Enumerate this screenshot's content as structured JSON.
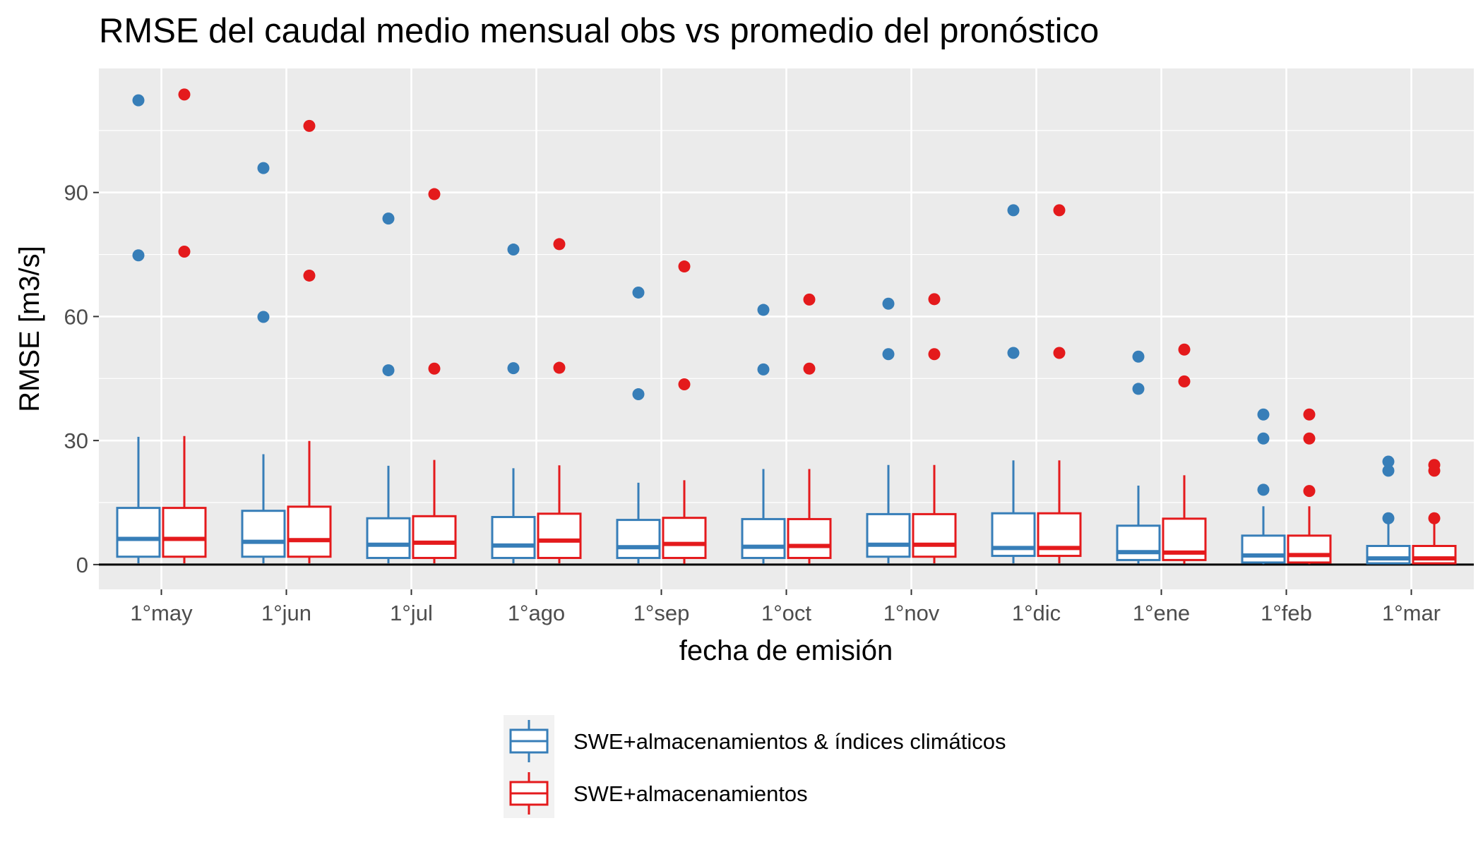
{
  "chart_data": {
    "type": "boxplot",
    "title": "RMSE del caudal medio mensual obs vs promedio del pronóstico",
    "xlabel": "fecha de emisión",
    "ylabel": "RMSE [m3/s]",
    "ylim": [
      -6,
      120
    ],
    "y_ticks": [
      0,
      30,
      60,
      90
    ],
    "grid": true,
    "zero_line": true,
    "legend_position": "bottom",
    "categories": [
      "1°may",
      "1°jun",
      "1°jul",
      "1°ago",
      "1°sep",
      "1°oct",
      "1°nov",
      "1°dic",
      "1°ene",
      "1°feb",
      "1°mar"
    ],
    "series": [
      {
        "name": "SWE+almacenamientos & índices climáticos",
        "color": "#377eb8",
        "boxes": [
          {
            "lower": 0.3,
            "q1": 1.9,
            "median": 6.2,
            "q3": 13.7,
            "upper": 30.9,
            "outliers": [
              74.8,
              112.3
            ]
          },
          {
            "lower": 0.3,
            "q1": 1.9,
            "median": 5.5,
            "q3": 13.0,
            "upper": 26.7,
            "outliers": [
              59.9,
              95.9
            ]
          },
          {
            "lower": 0.3,
            "q1": 1.6,
            "median": 4.8,
            "q3": 11.2,
            "upper": 23.9,
            "outliers": [
              47.0,
              83.7
            ]
          },
          {
            "lower": 0.3,
            "q1": 1.6,
            "median": 4.6,
            "q3": 11.5,
            "upper": 23.3,
            "outliers": [
              47.5,
              76.2
            ]
          },
          {
            "lower": 0.2,
            "q1": 1.6,
            "median": 4.2,
            "q3": 10.8,
            "upper": 19.8,
            "outliers": [
              41.2,
              65.8
            ]
          },
          {
            "lower": 0.2,
            "q1": 1.6,
            "median": 4.3,
            "q3": 11.0,
            "upper": 23.1,
            "outliers": [
              47.2,
              61.6
            ]
          },
          {
            "lower": 0.3,
            "q1": 1.9,
            "median": 4.8,
            "q3": 12.2,
            "upper": 24.1,
            "outliers": [
              50.9,
              63.1
            ]
          },
          {
            "lower": 0.3,
            "q1": 2.1,
            "median": 4.0,
            "q3": 12.4,
            "upper": 25.2,
            "outliers": [
              51.2,
              85.7
            ]
          },
          {
            "lower": 0.2,
            "q1": 1.1,
            "median": 3.0,
            "q3": 9.4,
            "upper": 19.1,
            "outliers": [
              42.5,
              50.3
            ]
          },
          {
            "lower": 0.1,
            "q1": 0.5,
            "median": 2.2,
            "q3": 7.0,
            "upper": 14.1,
            "outliers": [
              18.1,
              30.5,
              36.3
            ]
          },
          {
            "lower": 0.1,
            "q1": 0.3,
            "median": 1.5,
            "q3": 4.5,
            "upper": 9.8,
            "outliers": [
              11.2,
              22.7,
              24.9
            ]
          }
        ]
      },
      {
        "name": "SWE+almacenamientos",
        "color": "#e41a1c",
        "boxes": [
          {
            "lower": 0.3,
            "q1": 1.9,
            "median": 6.2,
            "q3": 13.7,
            "upper": 31.1,
            "outliers": [
              75.7,
              113.7
            ]
          },
          {
            "lower": 0.3,
            "q1": 1.9,
            "median": 5.9,
            "q3": 14.0,
            "upper": 29.9,
            "outliers": [
              69.9,
              106.1
            ]
          },
          {
            "lower": 0.3,
            "q1": 1.6,
            "median": 5.3,
            "q3": 11.7,
            "upper": 25.3,
            "outliers": [
              47.4,
              89.6
            ]
          },
          {
            "lower": 0.3,
            "q1": 1.6,
            "median": 5.8,
            "q3": 12.3,
            "upper": 24.0,
            "outliers": [
              47.6,
              77.5
            ]
          },
          {
            "lower": 0.2,
            "q1": 1.6,
            "median": 5.0,
            "q3": 11.3,
            "upper": 20.4,
            "outliers": [
              43.6,
              72.1
            ]
          },
          {
            "lower": 0.2,
            "q1": 1.6,
            "median": 4.5,
            "q3": 11.0,
            "upper": 23.1,
            "outliers": [
              47.4,
              64.1
            ]
          },
          {
            "lower": 0.3,
            "q1": 1.9,
            "median": 4.8,
            "q3": 12.2,
            "upper": 24.1,
            "outliers": [
              50.9,
              64.2
            ]
          },
          {
            "lower": 0.3,
            "q1": 2.1,
            "median": 4.0,
            "q3": 12.4,
            "upper": 25.2,
            "outliers": [
              51.2,
              85.7
            ]
          },
          {
            "lower": 0.2,
            "q1": 1.1,
            "median": 2.9,
            "q3": 11.1,
            "upper": 21.6,
            "outliers": [
              44.3,
              52.0
            ]
          },
          {
            "lower": 0.1,
            "q1": 0.5,
            "median": 2.3,
            "q3": 7.0,
            "upper": 14.1,
            "outliers": [
              17.8,
              30.5,
              36.3
            ]
          },
          {
            "lower": 0.1,
            "q1": 0.3,
            "median": 1.5,
            "q3": 4.5,
            "upper": 9.8,
            "outliers": [
              11.2,
              22.7,
              24.1
            ]
          }
        ]
      }
    ]
  }
}
